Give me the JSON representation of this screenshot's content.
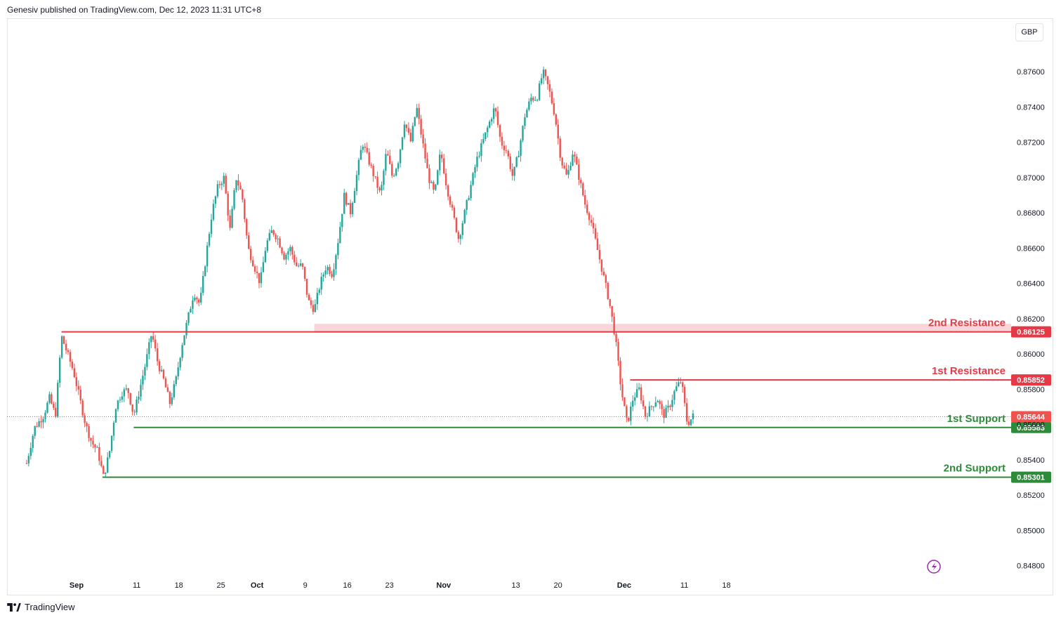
{
  "header": {
    "text": "Genesiv published on TradingView.com, Dec 12, 2023 11:31 UTC+8"
  },
  "currency": "GBP",
  "footer": {
    "brand": "TradingView"
  },
  "colors": {
    "up": "#26a69a",
    "down": "#ef5350",
    "resistance": "#e63946",
    "support": "#2e8b3a",
    "grid": "#e0e3eb"
  },
  "chart_data": {
    "type": "candlestick",
    "y_ticks": [
      "0.87600",
      "0.87400",
      "0.87200",
      "0.87000",
      "0.86800",
      "0.86600",
      "0.86400",
      "0.86200",
      "0.86000",
      "0.85800",
      "0.85600",
      "0.85400",
      "0.85200",
      "0.85000",
      "0.84800"
    ],
    "x_ticks": [
      {
        "label": "Sep",
        "bold": true,
        "day": 0
      },
      {
        "label": "11",
        "bold": false,
        "day": 10
      },
      {
        "label": "18",
        "bold": false,
        "day": 17
      },
      {
        "label": "25",
        "bold": false,
        "day": 24
      },
      {
        "label": "Oct",
        "bold": true,
        "day": 30
      },
      {
        "label": "9",
        "bold": false,
        "day": 38
      },
      {
        "label": "16",
        "bold": false,
        "day": 45
      },
      {
        "label": "23",
        "bold": false,
        "day": 52
      },
      {
        "label": "Nov",
        "bold": true,
        "day": 61
      },
      {
        "label": "13",
        "bold": false,
        "day": 73
      },
      {
        "label": "20",
        "bold": false,
        "day": 80
      },
      {
        "label": "Dec",
        "bold": true,
        "day": 91
      },
      {
        "label": "11",
        "bold": false,
        "day": 101
      },
      {
        "label": "18",
        "bold": false,
        "day": 108
      }
    ],
    "levels": [
      {
        "name": "2nd Resistance",
        "price_label": "0.86125",
        "value": 0.86125,
        "kind": "resistance",
        "from_day": -2.5
      },
      {
        "name": "1st Resistance",
        "price_label": "0.85852",
        "value": 0.85852,
        "kind": "resistance",
        "from_day": 92
      },
      {
        "name": "1st Support",
        "price_label": "0.85583",
        "value": 0.85583,
        "kind": "support",
        "from_day": 9.5
      },
      {
        "name": "2nd Support",
        "price_label": "0.85301",
        "value": 0.85301,
        "kind": "support",
        "from_day": 4.3
      }
    ],
    "current_price": {
      "label": "0.85644",
      "value": 0.85644
    },
    "zone": {
      "from": 0.8612,
      "to": 0.8617,
      "from_day": 39.5
    },
    "path": [
      [
        -8.3,
        0.8538
      ],
      [
        -7,
        0.8558
      ],
      [
        -5.5,
        0.8565
      ],
      [
        -4.5,
        0.8575
      ],
      [
        -3.5,
        0.8565
      ],
      [
        -2.5,
        0.861
      ],
      [
        -1.5,
        0.86
      ],
      [
        -0.5,
        0.859
      ],
      [
        0.5,
        0.8575
      ],
      [
        1.5,
        0.856
      ],
      [
        2.5,
        0.855
      ],
      [
        3.5,
        0.8545
      ],
      [
        4.5,
        0.853
      ],
      [
        5.5,
        0.8545
      ],
      [
        6.5,
        0.857
      ],
      [
        7.5,
        0.8578
      ],
      [
        8.5,
        0.858
      ],
      [
        9.5,
        0.8565
      ],
      [
        10.5,
        0.858
      ],
      [
        11.5,
        0.8595
      ],
      [
        12.5,
        0.8612
      ],
      [
        13.5,
        0.8595
      ],
      [
        14.5,
        0.8585
      ],
      [
        15.5,
        0.8572
      ],
      [
        16.5,
        0.8585
      ],
      [
        17.5,
        0.8605
      ],
      [
        18.5,
        0.862
      ],
      [
        19.5,
        0.8635
      ],
      [
        20.5,
        0.8628
      ],
      [
        21.5,
        0.8655
      ],
      [
        22.5,
        0.868
      ],
      [
        23.5,
        0.8695
      ],
      [
        24.5,
        0.87
      ],
      [
        25.5,
        0.867
      ],
      [
        26.5,
        0.87
      ],
      [
        27.5,
        0.869
      ],
      [
        28.5,
        0.866
      ],
      [
        29.5,
        0.865
      ],
      [
        30.5,
        0.864
      ],
      [
        31.5,
        0.8662
      ],
      [
        32.5,
        0.867
      ],
      [
        33.5,
        0.8665
      ],
      [
        34.5,
        0.8655
      ],
      [
        35.5,
        0.866
      ],
      [
        36.5,
        0.865
      ],
      [
        37.5,
        0.865
      ],
      [
        38.5,
        0.863
      ],
      [
        39.5,
        0.8625
      ],
      [
        40.5,
        0.864
      ],
      [
        41.5,
        0.865
      ],
      [
        42.5,
        0.8645
      ],
      [
        43.5,
        0.8665
      ],
      [
        44.5,
        0.869
      ],
      [
        45.5,
        0.868
      ],
      [
        46.5,
        0.87
      ],
      [
        47.5,
        0.872
      ],
      [
        48.5,
        0.871
      ],
      [
        49.5,
        0.87
      ],
      [
        50.5,
        0.869
      ],
      [
        51.5,
        0.8715
      ],
      [
        52.5,
        0.87
      ],
      [
        53.5,
        0.871
      ],
      [
        54.5,
        0.8732
      ],
      [
        55.5,
        0.872
      ],
      [
        56.5,
        0.874
      ],
      [
        57.5,
        0.872
      ],
      [
        58.5,
        0.87
      ],
      [
        59.5,
        0.869
      ],
      [
        60.5,
        0.8715
      ],
      [
        61.5,
        0.8695
      ],
      [
        62.5,
        0.868
      ],
      [
        63.5,
        0.8665
      ],
      [
        64.5,
        0.868
      ],
      [
        65.5,
        0.8695
      ],
      [
        66.5,
        0.871
      ],
      [
        67.5,
        0.872
      ],
      [
        68.5,
        0.873
      ],
      [
        69.5,
        0.874
      ],
      [
        70.5,
        0.872
      ],
      [
        71.5,
        0.8715
      ],
      [
        72.5,
        0.87
      ],
      [
        73.5,
        0.8715
      ],
      [
        74.5,
        0.8735
      ],
      [
        75.5,
        0.8745
      ],
      [
        76.5,
        0.8745
      ],
      [
        77.5,
        0.876
      ],
      [
        78.5,
        0.875
      ],
      [
        79.5,
        0.8735
      ],
      [
        80.5,
        0.871
      ],
      [
        81.5,
        0.87
      ],
      [
        82.5,
        0.8715
      ],
      [
        83.5,
        0.87
      ],
      [
        84.5,
        0.8685
      ],
      [
        85.5,
        0.8675
      ],
      [
        86.5,
        0.866
      ],
      [
        87.5,
        0.8645
      ],
      [
        88.5,
        0.863
      ],
      [
        89.5,
        0.861
      ],
      [
        90.5,
        0.858
      ],
      [
        91.5,
        0.856
      ],
      [
        92.5,
        0.8575
      ],
      [
        93.5,
        0.858
      ],
      [
        94.5,
        0.8565
      ],
      [
        95.5,
        0.857
      ],
      [
        96.5,
        0.8575
      ],
      [
        97.5,
        0.8565
      ],
      [
        98.5,
        0.857
      ],
      [
        99.5,
        0.858
      ],
      [
        100.5,
        0.8585
      ],
      [
        101.5,
        0.856
      ],
      [
        102.5,
        0.8565
      ]
    ]
  }
}
